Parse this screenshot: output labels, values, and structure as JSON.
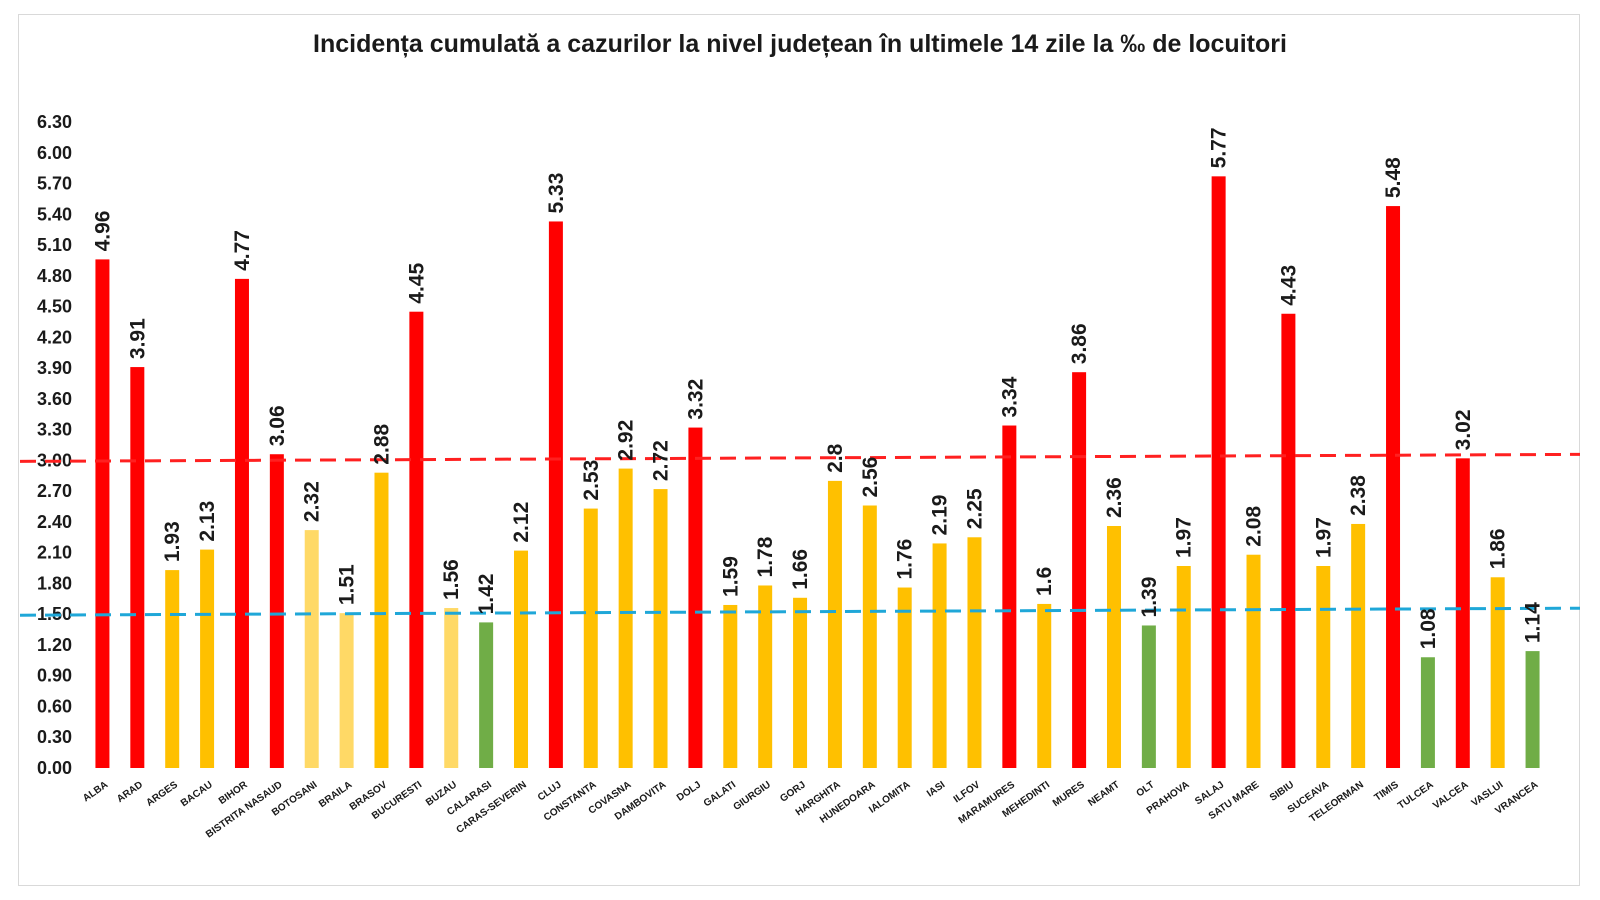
{
  "chart_data": {
    "type": "bar",
    "title": "Incidența cumulată a cazurilor la nivel județean în ultimele 14 zile la ‰ de locuitori",
    "xlabel": "",
    "ylabel": "",
    "ylim": [
      0,
      6.3
    ],
    "yticks": [
      "0.00",
      "0.30",
      "0.60",
      "0.90",
      "1.20",
      "1.50",
      "1.80",
      "2.10",
      "2.40",
      "2.70",
      "3.00",
      "3.30",
      "3.60",
      "3.90",
      "4.20",
      "4.50",
      "4.80",
      "5.10",
      "5.40",
      "5.70",
      "6.00",
      "6.30"
    ],
    "grid": false,
    "legend": "none",
    "categories": [
      "ALBA",
      "ARAD",
      "ARGES",
      "BACAU",
      "BIHOR",
      "BISTRITA NASAUD",
      "BOTOSANI",
      "BRAILA",
      "BRASOV",
      "BUCURESTI",
      "BUZAU",
      "CALARASI",
      "CARAS-SEVERIN",
      "CLUJ",
      "CONSTANTA",
      "COVASNA",
      "DAMBOVITA",
      "DOLJ",
      "GALATI",
      "GIURGIU",
      "GORJ",
      "HARGHITA",
      "HUNEDOARA",
      "IALOMITA",
      "IASI",
      "ILFOV",
      "MARAMURES",
      "MEHEDINTI",
      "MURES",
      "NEAMT",
      "OLT",
      "PRAHOVA",
      "SALAJ",
      "SATU MARE",
      "SIBIU",
      "SUCEAVA",
      "TELEORMAN",
      "TIMIS",
      "TULCEA",
      "VALCEA",
      "VASLUI",
      "VRANCEA"
    ],
    "values": [
      4.96,
      3.91,
      1.93,
      2.13,
      4.77,
      3.06,
      2.32,
      1.51,
      2.88,
      4.45,
      1.56,
      1.42,
      2.12,
      5.33,
      2.53,
      2.92,
      2.72,
      3.32,
      1.59,
      1.78,
      1.66,
      2.8,
      2.56,
      1.76,
      2.19,
      2.25,
      3.34,
      1.6,
      3.86,
      2.36,
      1.39,
      1.97,
      5.77,
      2.08,
      4.43,
      1.97,
      2.38,
      5.48,
      1.08,
      3.02,
      1.86,
      1.14
    ],
    "value_labels": [
      "4.96",
      "3.91",
      "1.93",
      "2.13",
      "4.77",
      "3.06",
      "2.32",
      "1.51",
      "2.88",
      "4.45",
      "1.56",
      "1.42",
      "2.12",
      "5.33",
      "2.53",
      "2.92",
      "2.72",
      "3.32",
      "1.59",
      "1.78",
      "1.66",
      "2.8",
      "2.56",
      "1.76",
      "2.19",
      "2.25",
      "3.34",
      "1.6",
      "3.86",
      "2.36",
      "1.39",
      "1.97",
      "5.77",
      "2.08",
      "4.43",
      "1.97",
      "2.38",
      "5.48",
      "1.08",
      "3.02",
      "1.86",
      "1.14"
    ],
    "bar_colors": [
      "#ff0000",
      "#ff0000",
      "#ffc000",
      "#ffc000",
      "#ff0000",
      "#ff0000",
      "#ffd966",
      "#ffd966",
      "#ffc000",
      "#ff0000",
      "#ffd966",
      "#70ad47",
      "#ffc000",
      "#ff0000",
      "#ffc000",
      "#ffc000",
      "#ffc000",
      "#ff0000",
      "#ffc000",
      "#ffc000",
      "#ffc000",
      "#ffc000",
      "#ffc000",
      "#ffc000",
      "#ffc000",
      "#ffc000",
      "#ff0000",
      "#ffc000",
      "#ff0000",
      "#ffc000",
      "#70ad47",
      "#ffc000",
      "#ff0000",
      "#ffc000",
      "#ff0000",
      "#ffc000",
      "#ffc000",
      "#ff0000",
      "#70ad47",
      "#ff0000",
      "#ffc000",
      "#70ad47"
    ],
    "reference_lines": [
      {
        "value": 3.0,
        "color": "#ff2020",
        "style": "dashed"
      },
      {
        "value": 1.5,
        "color": "#1fa7d8",
        "style": "dashed"
      }
    ]
  }
}
